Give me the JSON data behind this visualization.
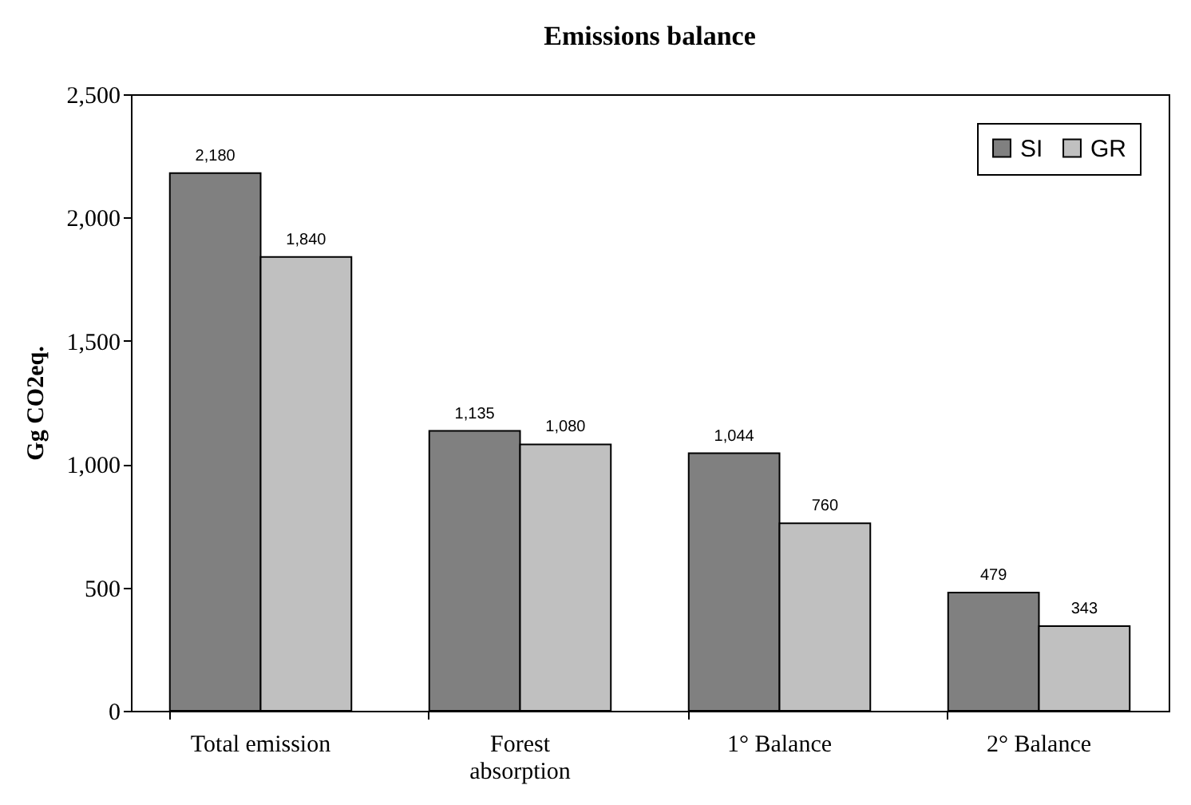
{
  "chart_data": {
    "type": "bar",
    "title": "Emissions balance",
    "ylabel": "Gg CO2eq.",
    "categories": [
      "Total emission",
      "Forest absorption",
      "1° Balance",
      "2° Balance"
    ],
    "series": [
      {
        "name": "SI",
        "color": "#808080",
        "values": [
          2180,
          1135,
          1044,
          479
        ],
        "value_labels": [
          "2,180",
          "1,135",
          "1,044",
          "479"
        ]
      },
      {
        "name": "GR",
        "color": "#c0c0c0",
        "values": [
          1840,
          1080,
          760,
          343
        ],
        "value_labels": [
          "1,840",
          "1,080",
          "760",
          "343"
        ]
      }
    ],
    "ylim": [
      0,
      2500
    ],
    "yticks": [
      0,
      {
        "value": 500,
        "label": "500"
      },
      {
        "value": 1000,
        "label": "1,000"
      },
      {
        "value": 1500,
        "label": "1,500"
      },
      {
        "value": 2000,
        "label": "2,000"
      },
      {
        "value": 2500,
        "label": "2,500"
      }
    ],
    "grid": false,
    "legend": "top right"
  }
}
